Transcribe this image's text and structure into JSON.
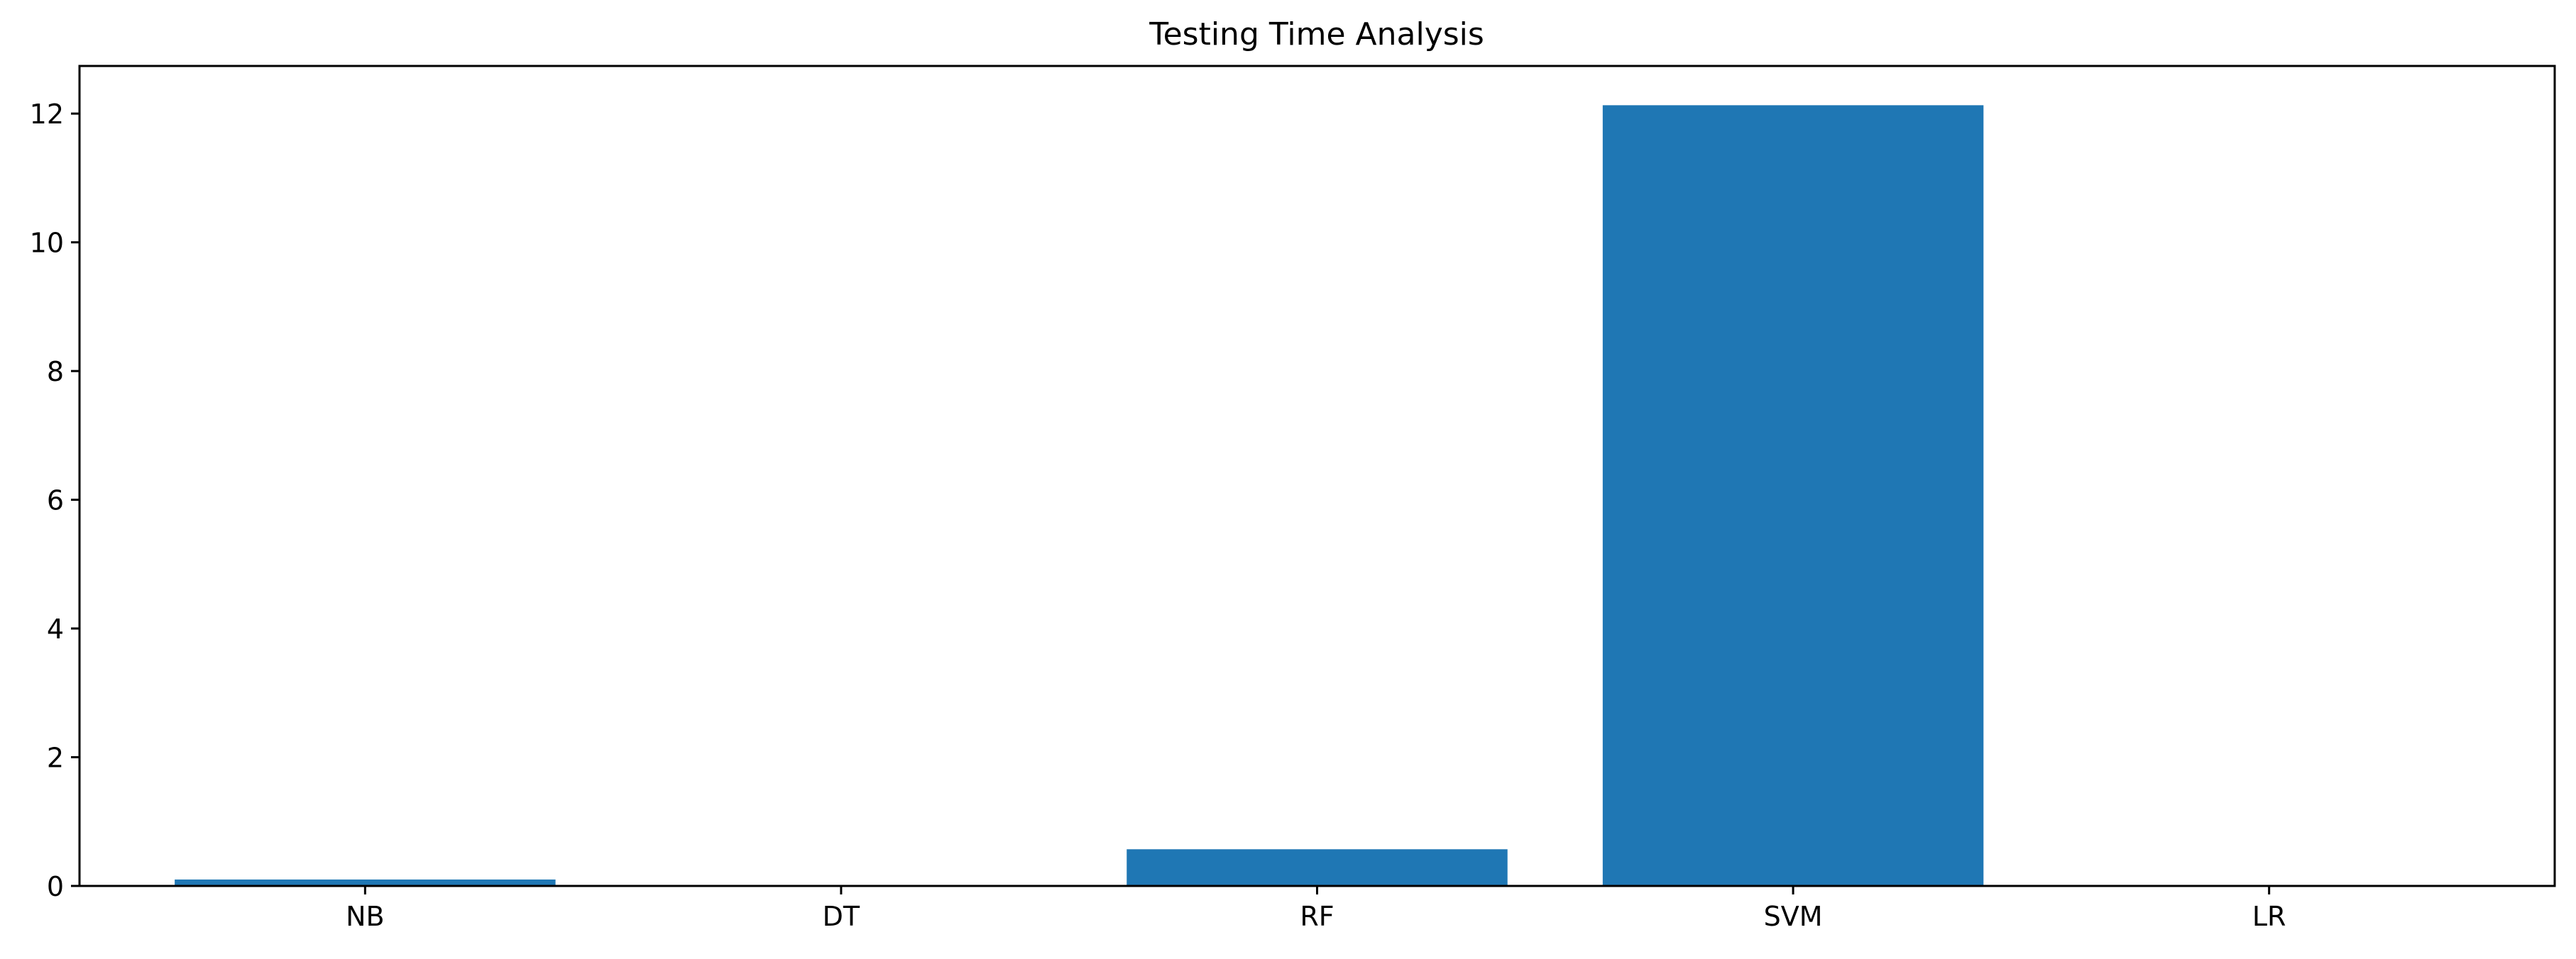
{
  "chart_data": {
    "type": "bar",
    "title": "Testing Time Analysis",
    "xlabel": "",
    "ylabel": "",
    "categories": [
      "NB",
      "DT",
      "RF",
      "SVM",
      "LR"
    ],
    "values": [
      0.1,
      0.01,
      0.57,
      12.13,
      0.01
    ],
    "ylim": [
      0,
      12.74
    ],
    "yticks": [
      0,
      2,
      4,
      6,
      8,
      10,
      12
    ],
    "grid": false,
    "legend": "none",
    "bar_color": "#1f77b4"
  }
}
